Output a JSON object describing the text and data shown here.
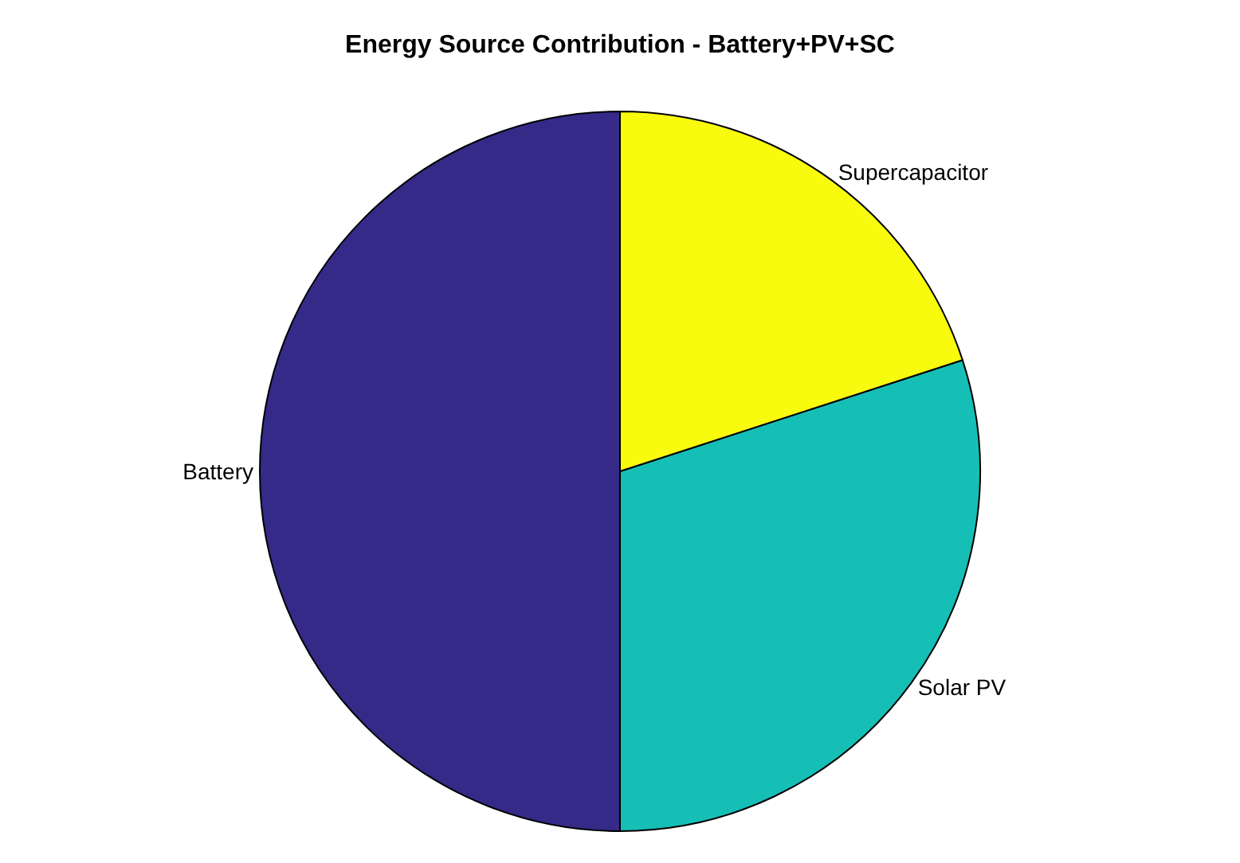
{
  "chart_data": {
    "type": "pie",
    "title": "Energy Source Contribution - Battery+PV+SC",
    "categories": [
      "Battery",
      "Solar PV",
      "Supercapacitor"
    ],
    "values": [
      50,
      30,
      20
    ],
    "colors": [
      "#352a87",
      "#16bfb6",
      "#f9fb0e"
    ],
    "legend": false
  }
}
